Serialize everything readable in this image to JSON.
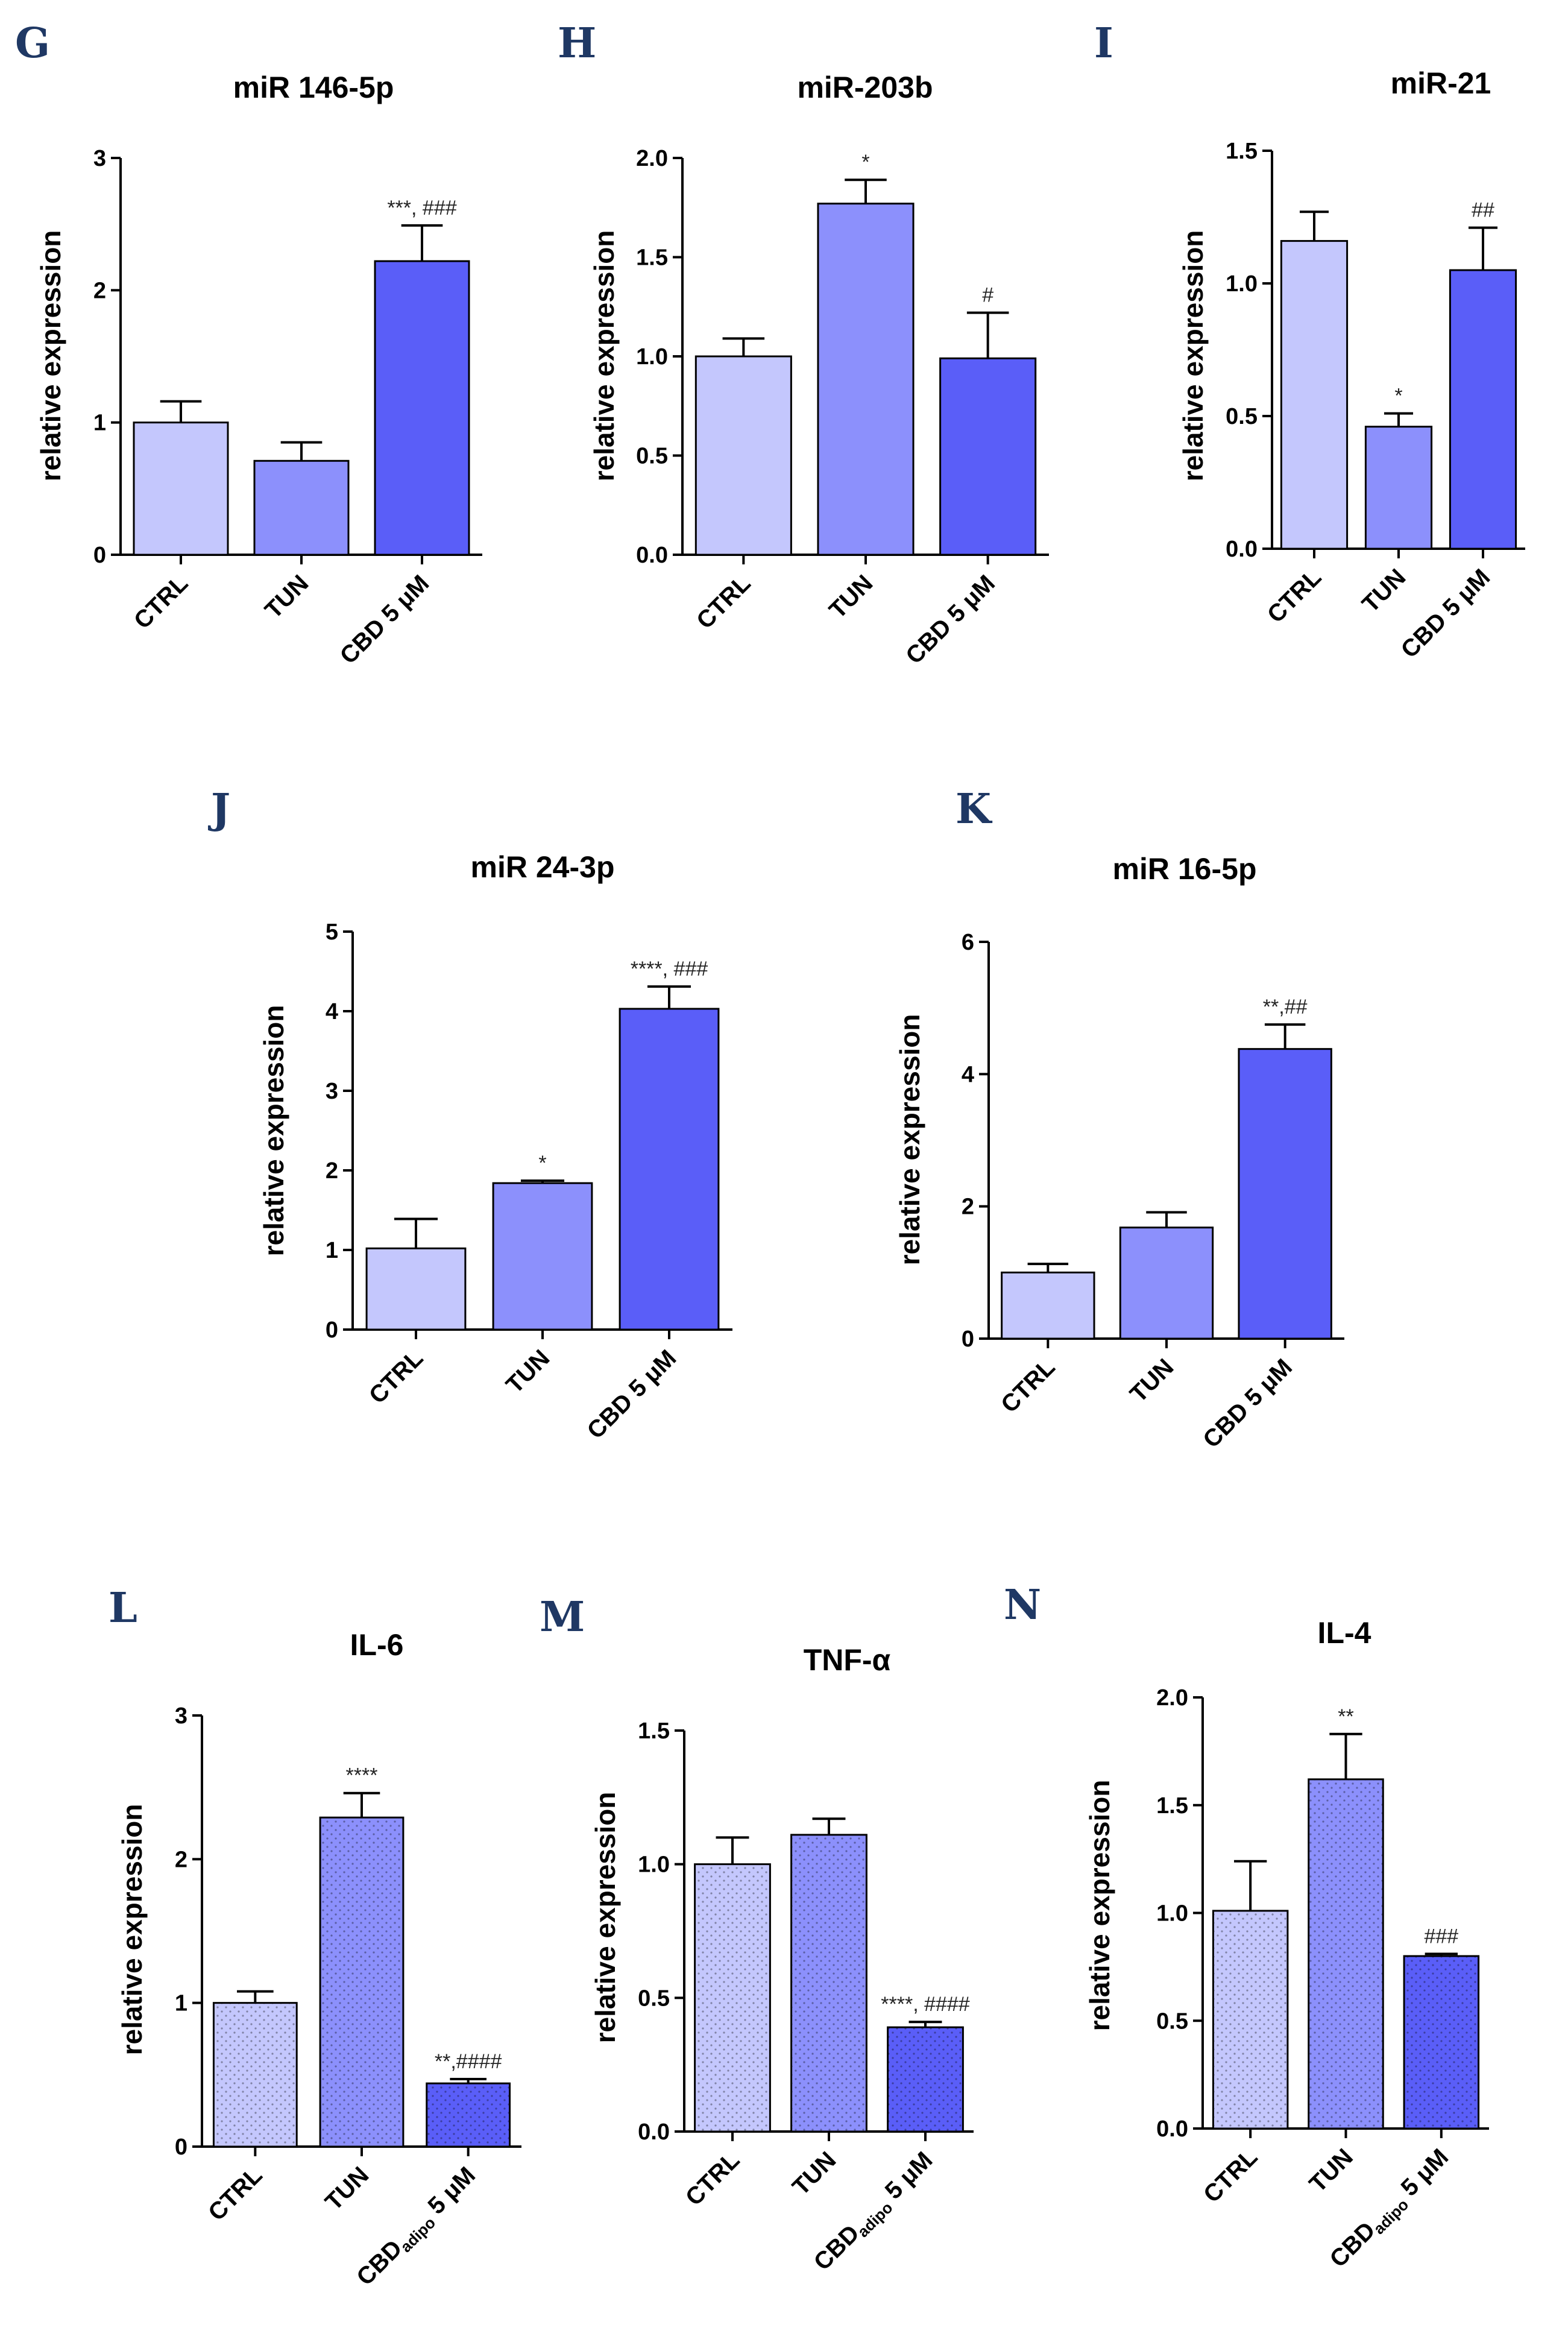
{
  "chart_data": [
    {
      "panel": "G",
      "type": "bar",
      "title": "miR 146-5p",
      "ylabel": "relative expression",
      "categories": [
        "CTRL",
        "TUN",
        "CBD 5 μM"
      ],
      "values": [
        1.0,
        0.71,
        2.22
      ],
      "errors": [
        0.16,
        0.14,
        0.27
      ],
      "significance": [
        "",
        "",
        "***, ###"
      ],
      "ylim": [
        0,
        3
      ],
      "yticks": [
        "0",
        "1",
        "2",
        "3"
      ],
      "colors": [
        "#c4c7fd",
        "#8c90fc",
        "#5a5ef8"
      ],
      "hatched": false
    },
    {
      "panel": "H",
      "type": "bar",
      "title": "miR-203b",
      "ylabel": "relative expression",
      "categories": [
        "CTRL",
        "TUN",
        "CBD 5 μM"
      ],
      "values": [
        1.0,
        1.77,
        0.99
      ],
      "errors": [
        0.09,
        0.12,
        0.23
      ],
      "significance": [
        "",
        "*",
        "#"
      ],
      "ylim": [
        0,
        2
      ],
      "yticks": [
        "0.0",
        "0.5",
        "1.0",
        "1.5",
        "2.0"
      ],
      "colors": [
        "#c4c7fd",
        "#8c90fc",
        "#5a5ef8"
      ],
      "hatched": false
    },
    {
      "panel": "I",
      "type": "bar",
      "title": "miR-21",
      "ylabel": "relative expression",
      "categories": [
        "CTRL",
        "TUN",
        "CBD 5 μM"
      ],
      "values": [
        1.16,
        0.46,
        1.05
      ],
      "errors": [
        0.11,
        0.05,
        0.16
      ],
      "significance": [
        "",
        "*",
        "##"
      ],
      "ylim": [
        0,
        1.5
      ],
      "yticks": [
        "0.0",
        "0.5",
        "1.0",
        "1.5"
      ],
      "colors": [
        "#c4c7fd",
        "#8c90fc",
        "#5a5ef8"
      ],
      "hatched": false
    },
    {
      "panel": "J",
      "type": "bar",
      "title": "miR 24-3p",
      "ylabel": "relative expression",
      "categories": [
        "CTRL",
        "TUN",
        "CBD 5 μM"
      ],
      "values": [
        1.02,
        1.84,
        4.03
      ],
      "errors": [
        0.37,
        0.03,
        0.28
      ],
      "significance": [
        "",
        "*",
        "****, ###"
      ],
      "ylim": [
        0,
        5
      ],
      "yticks": [
        "0",
        "1",
        "2",
        "3",
        "4",
        "5"
      ],
      "colors": [
        "#c4c7fd",
        "#8c90fc",
        "#5a5ef8"
      ],
      "hatched": false
    },
    {
      "panel": "K",
      "type": "bar",
      "title": "miR 16-5p",
      "ylabel": "relative expression",
      "categories": [
        "CTRL",
        "TUN",
        "CBD 5 μM"
      ],
      "values": [
        1.0,
        1.68,
        4.38
      ],
      "errors": [
        0.13,
        0.23,
        0.37
      ],
      "significance": [
        "",
        "",
        "**,##"
      ],
      "ylim": [
        0,
        6
      ],
      "yticks": [
        "0",
        "2",
        "4",
        "6"
      ],
      "colors": [
        "#c4c7fd",
        "#8c90fc",
        "#5a5ef8"
      ],
      "hatched": false
    },
    {
      "panel": "L",
      "type": "bar",
      "title": "IL-6",
      "ylabel": "relative expression",
      "categories": [
        "CTRL",
        "TUN",
        "CBD"
      ],
      "category_subscript": "adipo",
      "category_suffix": " 5 μM",
      "values": [
        1.0,
        2.29,
        0.44
      ],
      "errors": [
        0.08,
        0.17,
        0.03
      ],
      "significance": [
        "",
        "****",
        "**,####"
      ],
      "ylim": [
        0,
        3
      ],
      "yticks": [
        "0",
        "1",
        "2",
        "3"
      ],
      "colors": [
        "#c4c7fd",
        "#8c90fc",
        "#5a5ef8"
      ],
      "hatched": true
    },
    {
      "panel": "M",
      "type": "bar",
      "title": "TNF-α",
      "ylabel": "relative expression",
      "categories": [
        "CTRL",
        "TUN",
        "CBD"
      ],
      "category_subscript": "adipo",
      "category_suffix": " 5 μM",
      "values": [
        1.0,
        1.11,
        0.39
      ],
      "errors": [
        0.1,
        0.06,
        0.02
      ],
      "significance": [
        "",
        "",
        "****, ####"
      ],
      "ylim": [
        0,
        1.5
      ],
      "yticks": [
        "0.0",
        "0.5",
        "1.0",
        "1.5"
      ],
      "colors": [
        "#c4c7fd",
        "#8c90fc",
        "#5a5ef8"
      ],
      "hatched": true
    },
    {
      "panel": "N",
      "type": "bar",
      "title": "IL-4",
      "ylabel": "relative expression",
      "categories": [
        "CTRL",
        "TUN",
        "CBD"
      ],
      "category_subscript": "adipo",
      "category_suffix": " 5 μM",
      "values": [
        1.01,
        1.62,
        0.8
      ],
      "errors": [
        0.23,
        0.21,
        0.01
      ],
      "significance": [
        "",
        "**",
        "###"
      ],
      "ylim": [
        0,
        2
      ],
      "yticks": [
        "0.0",
        "0.5",
        "1.0",
        "1.5",
        "2.0"
      ],
      "colors": [
        "#c4c7fd",
        "#8c90fc",
        "#5a5ef8"
      ],
      "hatched": true
    }
  ]
}
